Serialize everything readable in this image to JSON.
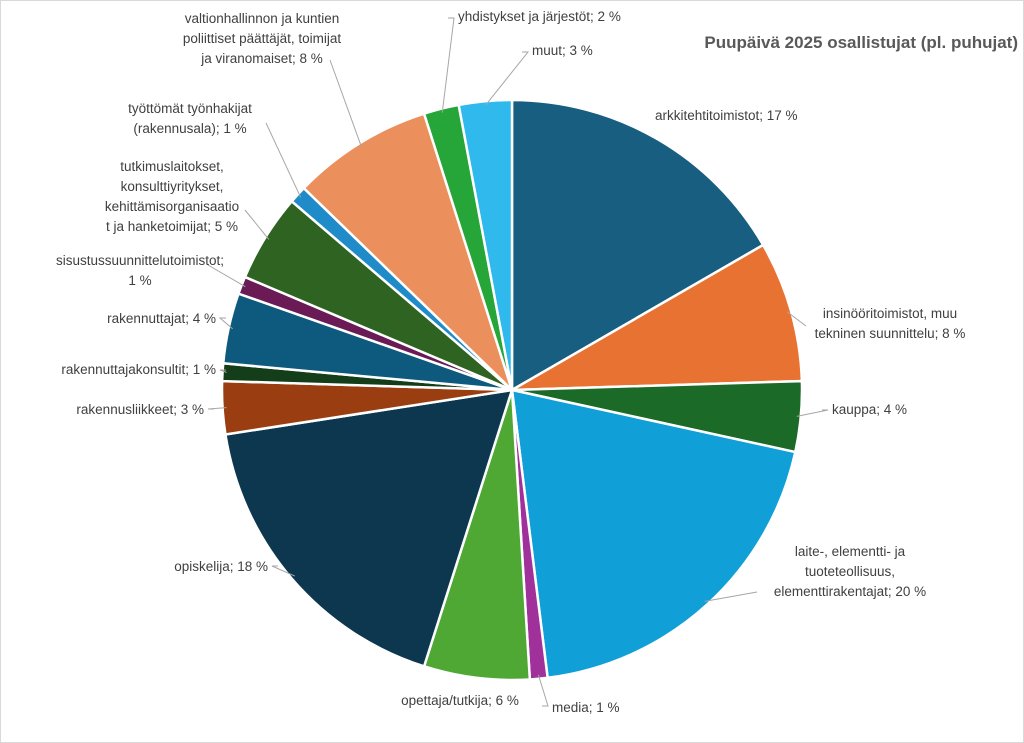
{
  "chart_data": {
    "type": "pie",
    "title": "Puupäivä 2025 osallistujat (pl. puhujat)",
    "unit": "%",
    "categories": [
      "arkkitehtitoimistot",
      "insinööritoimistot, muu tekninen suunnittelu",
      "kauppa",
      "laite-, elementti- ja tuoteteollisuus, elementtirakentajat",
      "media",
      "opettaja/tutkija",
      "opiskelija",
      "rakennusliikkeet",
      "rakennuttajakonsultit",
      "rakennuttajat",
      "sisustussuunnittelutoimistot",
      "tutkimuslaitokset, konsulttiyritykset, kehittämisorganisaatiot ja hanketoimijat",
      "työttömät työnhakijat (rakennusala)",
      "valtionhallinnon ja kuntien poliittiset päättäjät, toimijat ja viranomaiset",
      "yhdistykset ja järjestöt",
      "muut"
    ],
    "values": [
      17,
      8,
      4,
      20,
      1,
      6,
      18,
      3,
      1,
      4,
      1,
      5,
      1,
      8,
      2,
      3
    ],
    "colors": [
      "#175e80",
      "#e87232",
      "#1c6a27",
      "#10a0d7",
      "#a0319b",
      "#4ea833",
      "#0c374f",
      "#9a3e12",
      "#143e1a",
      "#0e5a7f",
      "#6a1b56",
      "#2e6322",
      "#1f8bc9",
      "#eb8f5d",
      "#26a538",
      "#2fb9ec"
    ],
    "labels": [
      [
        "arkkitehtitoimistot; 17 %"
      ],
      [
        "insinööritoimistot, muu",
        "tekninen suunnittelu; 8 %"
      ],
      [
        "kauppa; 4 %"
      ],
      [
        "laite-, elementti- ja",
        "tuoteteollisuus,",
        "elementtirakentajat; 20 %"
      ],
      [
        "media; 1 %"
      ],
      [
        "opettaja/tutkija; 6 %"
      ],
      [
        "opiskelija; 18 %"
      ],
      [
        "rakennusliikkeet; 3 %"
      ],
      [
        "rakennuttajakonsultit; 1 %"
      ],
      [
        "rakennuttajat; 4 %"
      ],
      [
        "sisustussuunnittelutoimistot;",
        "1 %"
      ],
      [
        "tutkimuslaitokset,",
        "konsulttiyritykset,",
        "kehittämisorganisaatio",
        "t ja hanketoimijat; 5 %"
      ],
      [
        "työttömät työnhakijat",
        "(rakennusala); 1 %"
      ],
      [
        "valtionhallinnon ja kuntien",
        "poliittiset päättäjät, toimijat",
        "ja viranomaiset; 8 %"
      ],
      [
        "yhdistykset ja järjestöt; 2 %"
      ],
      [
        "muut; 3 %"
      ]
    ],
    "legend": "none"
  }
}
